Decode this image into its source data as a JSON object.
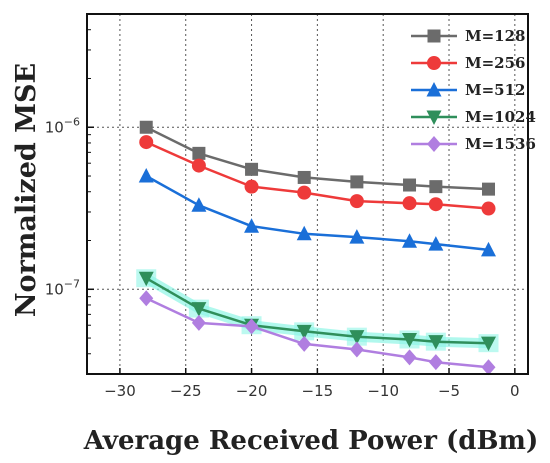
{
  "chart_data": {
    "type": "line",
    "xlabel": "Average Received Power (dBm)",
    "ylabel": "Normalized MSE",
    "xlim": [
      -32.5,
      1
    ],
    "ylim": [
      3e-08,
      5e-06
    ],
    "yscale": "log",
    "x_ticks": [
      -30,
      -25,
      -20,
      -15,
      -10,
      -5,
      0
    ],
    "y_ticks": [
      {
        "value": 1e-07,
        "mantissa": "10",
        "exp": "−7"
      },
      {
        "value": 1e-06,
        "mantissa": "10",
        "exp": "−6"
      }
    ],
    "grid": true,
    "legend_position": "top-right",
    "x": [
      -28,
      -24,
      -20,
      -16,
      -12,
      -8,
      -6,
      -2
    ],
    "series": [
      {
        "name": "M=128",
        "marker": "square",
        "color": "#6b6b6b",
        "values": [
          1e-06,
          6.9e-07,
          5.5e-07,
          4.9e-07,
          4.6e-07,
          4.4e-07,
          4.3e-07,
          4.15e-07
        ]
      },
      {
        "name": "M=256",
        "marker": "circle",
        "color": "#ee3a3a",
        "values": [
          8.1e-07,
          5.8e-07,
          4.3e-07,
          3.95e-07,
          3.5e-07,
          3.4e-07,
          3.35e-07,
          3.15e-07
        ]
      },
      {
        "name": "M=512",
        "marker": "triangle-up",
        "color": "#1a6fd8",
        "values": [
          5e-07,
          3.3e-07,
          2.45e-07,
          2.2e-07,
          2.1e-07,
          1.98e-07,
          1.9e-07,
          1.75e-07
        ]
      },
      {
        "name": "M=1024",
        "marker": "triangle-down",
        "color": "#2f8f5b",
        "glow": "#8ff5e6",
        "values": [
          1.17e-07,
          7.6e-08,
          6e-08,
          5.5e-08,
          5.1e-08,
          4.9e-08,
          4.75e-08,
          4.65e-08
        ]
      },
      {
        "name": "M=1536",
        "marker": "diamond",
        "color": "#b07ee0",
        "values": [
          8.8e-08,
          6.2e-08,
          5.9e-08,
          4.6e-08,
          4.25e-08,
          3.8e-08,
          3.55e-08,
          3.3e-08
        ]
      }
    ]
  }
}
